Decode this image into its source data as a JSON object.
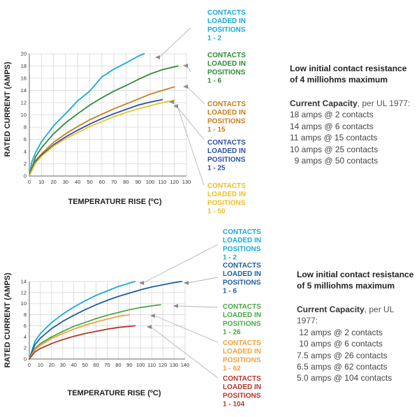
{
  "chart_data": [
    {
      "type": "line",
      "title": "",
      "xlabel": "TEMPERATURE RISE (ºC)",
      "ylabel": "RATED CURRENT (AMPS)",
      "xlim": [
        0,
        130
      ],
      "ylim": [
        0,
        20
      ],
      "xticks": [
        "0",
        "10",
        "20",
        "30",
        "40",
        "50",
        "60",
        "70",
        "80",
        "90",
        "100",
        "110",
        "120",
        "130"
      ],
      "yticks": [
        "0",
        "2",
        "4",
        "6",
        "8",
        "10",
        "12",
        "14",
        "16",
        "18",
        "20"
      ],
      "series": [
        {
          "name": "CONTACTS LOADED IN POSITIONS 1 - 2",
          "color": "#16a9d9",
          "points": [
            [
              0,
              0
            ],
            [
              2,
              2.3
            ],
            [
              5,
              3.8
            ],
            [
              10,
              5.6
            ],
            [
              20,
              8.2
            ],
            [
              30,
              10.2
            ],
            [
              40,
              12.3
            ],
            [
              50,
              13.9
            ],
            [
              60,
              16.2
            ],
            [
              70,
              17.5
            ],
            [
              80,
              18.5
            ],
            [
              90,
              19.6
            ],
            [
              95,
              20
            ]
          ]
        },
        {
          "name": "CONTACTS LOADED IN POSITIONS 1 - 6",
          "color": "#2e8b38",
          "points": [
            [
              0,
              0
            ],
            [
              5,
              3.1
            ],
            [
              10,
              4.6
            ],
            [
              20,
              6.9
            ],
            [
              30,
              8.7
            ],
            [
              40,
              10.2
            ],
            [
              50,
              11.6
            ],
            [
              60,
              12.8
            ],
            [
              70,
              13.9
            ],
            [
              80,
              14.8
            ],
            [
              90,
              15.8
            ],
            [
              100,
              16.7
            ],
            [
              110,
              17.4
            ],
            [
              123,
              18
            ]
          ]
        },
        {
          "name": "CONTACTS LOADED IN POSITIONS 1 - 15",
          "color": "#c47d19",
          "points": [
            [
              0,
              0
            ],
            [
              5,
              2.5
            ],
            [
              10,
              3.6
            ],
            [
              20,
              5.5
            ],
            [
              30,
              6.9
            ],
            [
              40,
              8.1
            ],
            [
              50,
              9.2
            ],
            [
              60,
              10.1
            ],
            [
              70,
              11
            ],
            [
              80,
              11.8
            ],
            [
              90,
              12.6
            ],
            [
              100,
              13.4
            ],
            [
              110,
              14
            ],
            [
              120,
              14.6
            ]
          ]
        },
        {
          "name": "CONTACTS LOADED IN POSITIONS 1 - 25",
          "color": "#2e4fa8",
          "points": [
            [
              0,
              0
            ],
            [
              5,
              2.3
            ],
            [
              10,
              3.4
            ],
            [
              20,
              5.1
            ],
            [
              30,
              6.4
            ],
            [
              40,
              7.5
            ],
            [
              50,
              8.5
            ],
            [
              60,
              9.4
            ],
            [
              70,
              10.2
            ],
            [
              80,
              10.9
            ],
            [
              90,
              11.6
            ],
            [
              100,
              12.1
            ],
            [
              110,
              12.5
            ]
          ]
        },
        {
          "name": "CONTACTS LOADED IN POSITIONS 1 - 50",
          "color": "#f0c020",
          "points": [
            [
              0,
              0
            ],
            [
              5,
              2.1
            ],
            [
              10,
              3.2
            ],
            [
              20,
              4.9
            ],
            [
              30,
              6.1
            ],
            [
              40,
              7.1
            ],
            [
              50,
              8.1
            ],
            [
              60,
              8.9
            ],
            [
              70,
              9.7
            ],
            [
              80,
              10.4
            ],
            [
              90,
              11
            ],
            [
              100,
              11.5
            ],
            [
              110,
              12
            ],
            [
              120,
              12.4
            ]
          ]
        }
      ]
    },
    {
      "type": "line",
      "title": "",
      "xlabel": "TEMPERATURE RISE (ºC)",
      "ylabel": "RATED CURRENT (AMPS)",
      "xlim": [
        0,
        140
      ],
      "ylim": [
        0,
        14
      ],
      "xticks": [
        "0",
        "10",
        "20",
        "30",
        "40",
        "50",
        "60",
        "70",
        "80",
        "90",
        "100",
        "110",
        "120",
        "130",
        "140"
      ],
      "yticks": [
        "0",
        "2",
        "4",
        "6",
        "8",
        "10",
        "12",
        "14"
      ],
      "series": [
        {
          "name": "CONTACTS LOADED IN POSITIONS 1 - 2",
          "color": "#16a9d9",
          "points": [
            [
              0,
              0
            ],
            [
              5,
              3.2
            ],
            [
              10,
              4.6
            ],
            [
              20,
              6.6
            ],
            [
              30,
              8.1
            ],
            [
              40,
              9.4
            ],
            [
              50,
              10.5
            ],
            [
              60,
              11.5
            ],
            [
              70,
              12.3
            ],
            [
              80,
              13.1
            ],
            [
              90,
              13.7
            ],
            [
              95,
              14
            ]
          ]
        },
        {
          "name": "CONTACTS LOADED IN POSITIONS 1 - 6",
          "color": "#1c5f9e",
          "points": [
            [
              0,
              0
            ],
            [
              5,
              2.6
            ],
            [
              10,
              3.8
            ],
            [
              20,
              5.5
            ],
            [
              30,
              6.8
            ],
            [
              40,
              7.9
            ],
            [
              50,
              8.9
            ],
            [
              60,
              9.8
            ],
            [
              70,
              10.6
            ],
            [
              80,
              11.3
            ],
            [
              90,
              11.9
            ],
            [
              100,
              12.5
            ],
            [
              110,
              13
            ],
            [
              120,
              13.4
            ],
            [
              130,
              13.8
            ],
            [
              137,
              14
            ]
          ]
        },
        {
          "name": "CONTACTS LOADED IN POSITIONS 1 - 26",
          "color": "#4aa84a",
          "points": [
            [
              0,
              0
            ],
            [
              5,
              1.9
            ],
            [
              10,
              2.8
            ],
            [
              20,
              4
            ],
            [
              30,
              5
            ],
            [
              40,
              5.9
            ],
            [
              50,
              6.6
            ],
            [
              60,
              7.3
            ],
            [
              70,
              7.9
            ],
            [
              80,
              8.4
            ],
            [
              90,
              8.9
            ],
            [
              100,
              9.3
            ],
            [
              110,
              9.6
            ],
            [
              118,
              9.8
            ]
          ]
        },
        {
          "name": "CONTACTS LOADED IN POSITIONS 1 - 62",
          "color": "#f2a03c",
          "points": [
            [
              0,
              0
            ],
            [
              5,
              1.7
            ],
            [
              10,
              2.5
            ],
            [
              20,
              3.7
            ],
            [
              30,
              4.6
            ],
            [
              40,
              5.4
            ],
            [
              50,
              6.1
            ],
            [
              60,
              6.7
            ],
            [
              70,
              7.2
            ],
            [
              80,
              7.7
            ],
            [
              90,
              8
            ]
          ]
        },
        {
          "name": "CONTACTS LOADED IN POSITIONS 1 - 104",
          "color": "#b8352a",
          "points": [
            [
              0,
              0
            ],
            [
              5,
              1.3
            ],
            [
              10,
              1.9
            ],
            [
              20,
              2.8
            ],
            [
              30,
              3.5
            ],
            [
              40,
              4.1
            ],
            [
              50,
              4.6
            ],
            [
              60,
              5
            ],
            [
              70,
              5.4
            ],
            [
              80,
              5.7
            ],
            [
              90,
              5.9
            ],
            [
              95,
              6
            ]
          ]
        }
      ]
    }
  ],
  "callouts": [
    [
      {
        "lines": [
          "CONTACTS",
          "LOADED IN",
          "POSITIONS",
          "1 - 2"
        ],
        "color": "#16a9d9"
      },
      {
        "lines": [
          "CONTACTS",
          "LOADED IN",
          "POSITIONS",
          "1 - 6"
        ],
        "color": "#2e8b38"
      },
      {
        "lines": [
          "CONTACTS",
          "LOADED IN",
          "POSITIONS",
          "1 - 15"
        ],
        "color": "#c47d19"
      },
      {
        "lines": [
          "CONTACTS",
          "LOADED IN",
          "POSITIONS",
          "1 - 25"
        ],
        "color": "#2e4fa8"
      },
      {
        "lines": [
          "CONTACTS",
          "LOADED IN",
          "POSITIONS",
          "1 - 50"
        ],
        "color": "#f0c020"
      }
    ],
    [
      {
        "lines": [
          "CONTACTS",
          "LOADED IN",
          "POSITIONS",
          "1 - 2"
        ],
        "color": "#16a9d9"
      },
      {
        "lines": [
          "CONTACTS",
          "LOADED IN",
          "POSITIONS",
          "1 - 6"
        ],
        "color": "#1c5f9e"
      },
      {
        "lines": [
          "CONTACTS",
          "LOADED IN",
          "POSITIONS",
          "1 - 26"
        ],
        "color": "#4aa84a"
      },
      {
        "lines": [
          "CONTACTS",
          "LOADED IN",
          "POSITIONS",
          "1 - 62"
        ],
        "color": "#f2a03c"
      },
      {
        "lines": [
          "CONTACTS",
          "LOADED IN",
          "POSITIONS",
          "1 - 104"
        ],
        "color": "#b8352a"
      }
    ]
  ],
  "specs": [
    {
      "heading": [
        "Low initial contact resistance",
        "of 4 milliohms maximum"
      ],
      "capacity_label": "Current Capacity",
      "capacity_note": ", per UL 1977:",
      "ratings": [
        "18 amps @ 2 contacts",
        "14 amps @ 6 contacts",
        "11 amps @ 15 contacts",
        "10 amps @ 25 contacts",
        "  9 amps @ 50 contacts"
      ]
    },
    {
      "heading": [
        "Low initial contact resistance",
        "of 5 milliohms maximum"
      ],
      "capacity_label": "Current Capacity",
      "capacity_note": ", per UL 1977:",
      "ratings": [
        " 12 amps @ 2 contacts",
        " 10 amps @ 6 contacts",
        "7.5 amps @ 26 contacts",
        "6.5 amps @ 62 contacts",
        "5.0 amps @ 104 contacts"
      ]
    }
  ]
}
